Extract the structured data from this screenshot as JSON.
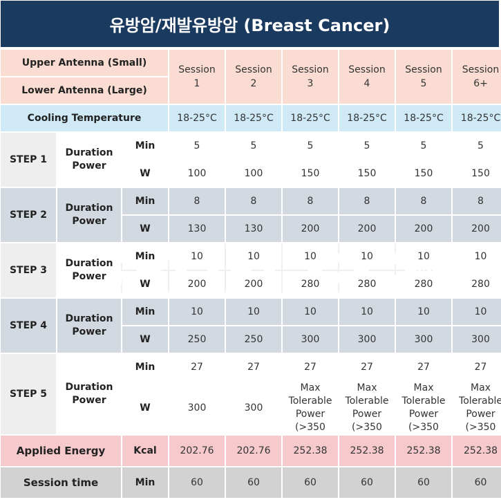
{
  "title": "유방암/재발유방암 (Breast Cancer)",
  "header": {
    "upper_antenna": "Upper Antenna (Small)",
    "lower_antenna": "Lower Antenna (Large)",
    "sessions": [
      {
        "line1": "Session",
        "line2": "1"
      },
      {
        "line1": "Session",
        "line2": "2"
      },
      {
        "line1": "Session",
        "line2": "3"
      },
      {
        "line1": "Session",
        "line2": "4"
      },
      {
        "line1": "Session",
        "line2": "5"
      },
      {
        "line1": "Session",
        "line2": "6+"
      }
    ]
  },
  "cooling": {
    "label": "Cooling Temperature",
    "values": [
      "18-25°C",
      "18-25°C",
      "18-25°C",
      "18-25°C",
      "18-25°C",
      "18-25°C"
    ]
  },
  "param_label_line1": "Duration",
  "param_label_line2": "Power",
  "unit_min": "Min",
  "unit_w": "W",
  "steps": [
    {
      "label": "STEP 1",
      "min": [
        "5",
        "5",
        "5",
        "5",
        "5",
        "5"
      ],
      "w": [
        "100",
        "100",
        "150",
        "150",
        "150",
        "150"
      ]
    },
    {
      "label": "STEP 2",
      "min": [
        "8",
        "8",
        "8",
        "8",
        "8",
        "8"
      ],
      "w": [
        "130",
        "130",
        "200",
        "200",
        "200",
        "200"
      ]
    },
    {
      "label": "STEP 3",
      "min": [
        "10",
        "10",
        "10",
        "10",
        "10",
        "10"
      ],
      "w": [
        "200",
        "200",
        "280",
        "280",
        "280",
        "280"
      ]
    },
    {
      "label": "STEP 4",
      "min": [
        "10",
        "10",
        "10",
        "10",
        "10",
        "10"
      ],
      "w": [
        "250",
        "250",
        "300",
        "300",
        "300",
        "300"
      ]
    },
    {
      "label": "STEP 5",
      "min": [
        "27",
        "27",
        "27",
        "27",
        "27",
        "27"
      ],
      "w": [
        "300",
        "300",
        "Max Tolerable Power (>350",
        "Max Tolerable Power (>350",
        "Max Tolerable Power (>350",
        "Max Tolerable Power (>350"
      ]
    }
  ],
  "applied_energy": {
    "label": "Applied Energy",
    "unit": "Kcal",
    "values": [
      "202.76",
      "202.76",
      "252.38",
      "252.38",
      "252.38",
      "252.38"
    ]
  },
  "session_time": {
    "label": "Session time",
    "unit": "Min",
    "values": [
      "60",
      "60",
      "60",
      "60",
      "60",
      "60"
    ]
  },
  "watermark": "HY-DEEP",
  "watermark_mark": "®",
  "colors": {
    "title_bg": "#1b3a5f",
    "header_peach": "#fbdcd2",
    "cooling_blue": "#cfe9f7",
    "step_gray": "#d3d9e1",
    "energy_pink": "#f6c9cd",
    "time_gray": "#d2d2d2"
  }
}
